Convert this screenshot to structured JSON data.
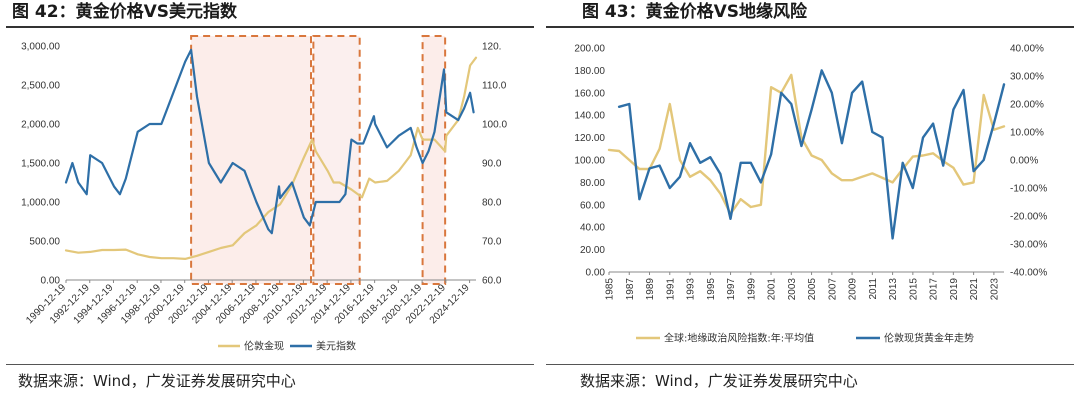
{
  "left": {
    "title": "图 42：黄金价格VS美元指数",
    "source": "数据来源：Wind，广发证券发展研究中心",
    "colors": {
      "gold": "#E3C77A",
      "usd": "#2E6FA7",
      "highlight_border": "#D9773D",
      "highlight_fill": "#FCEDEA"
    },
    "chart_data": {
      "type": "line",
      "x_ticks": [
        "1990-12-19",
        "1992-12-19",
        "1994-12-19",
        "1996-12-19",
        "1998-12-19",
        "2000-12-19",
        "2002-12-19",
        "2004-12-19",
        "2006-12-19",
        "2008-12-19",
        "2010-12-19",
        "2012-12-19",
        "2014-12-19",
        "2016-12-19",
        "2018-12-19",
        "2020-12-19",
        "2022-12-19",
        "2024-12-19"
      ],
      "y_left_ticks": [
        "0.00",
        "500.00",
        "1,000.00",
        "1,500.00",
        "2,000.00",
        "2,500.00",
        "3,000.00"
      ],
      "y_right_ticks": [
        "60.0",
        "70.0",
        "80.0",
        "90.0",
        "100.0",
        "110.0",
        "120."
      ],
      "ylim_left": [
        0,
        3000
      ],
      "ylim_right": [
        60,
        120
      ],
      "xlim": [
        1990.96,
        2025.5
      ],
      "highlighted_periods": [
        [
          2001.5,
          2011.6
        ],
        [
          2011.8,
          2015.7
        ],
        [
          2021.0,
          2022.9
        ]
      ],
      "series": [
        {
          "name": "伦敦金现",
          "axis": "left",
          "x": [
            1990.96,
            1992,
            1993,
            1994,
            1995,
            1996,
            1997,
            1998,
            1999,
            2000,
            2001,
            2002,
            2003,
            2004,
            2005,
            2006,
            2007,
            2008,
            2009,
            2010,
            2011,
            2011.7,
            2012,
            2013,
            2013.5,
            2014,
            2015,
            2015.9,
            2016.5,
            2017,
            2018,
            2019,
            2019.5,
            2020,
            2020.6,
            2021,
            2022,
            2022.9,
            2023,
            2024,
            2024.5,
            2025,
            2025.5
          ],
          "values": [
            380,
            350,
            360,
            385,
            385,
            390,
            330,
            295,
            280,
            280,
            270,
            310,
            360,
            410,
            445,
            600,
            700,
            870,
            970,
            1220,
            1570,
            1800,
            1650,
            1400,
            1250,
            1250,
            1160,
            1060,
            1300,
            1250,
            1270,
            1400,
            1500,
            1600,
            1950,
            1800,
            1800,
            1650,
            1850,
            2050,
            2350,
            2750,
            2850
          ]
        },
        {
          "name": "美元指数",
          "axis": "right",
          "x": [
            1990.96,
            1991.5,
            1992,
            1992.7,
            1993,
            1994,
            1995,
            1995.5,
            1996,
            1997,
            1998,
            1999,
            2000,
            2001,
            2001.5,
            2002,
            2003,
            2004,
            2005,
            2006,
            2007,
            2008,
            2008.3,
            2008.9,
            2009,
            2010,
            2011,
            2011.5,
            2012,
            2013,
            2014,
            2014.5,
            2015,
            2015.5,
            2016,
            2016.9,
            2017,
            2018,
            2019,
            2020,
            2020.5,
            2021,
            2021.5,
            2022,
            2022.8,
            2023,
            2024,
            2024.5,
            2025,
            2025.3
          ],
          "values": [
            85,
            90,
            85,
            82,
            92,
            90,
            84,
            82,
            86,
            98,
            100,
            100,
            108,
            116,
            119,
            107,
            90,
            85,
            90,
            88,
            80,
            73,
            72,
            84,
            81,
            85,
            76,
            74,
            80,
            80,
            80,
            82,
            96,
            95,
            95,
            102,
            100,
            94,
            97,
            99,
            94,
            90,
            93,
            98,
            114,
            103,
            101,
            104,
            108,
            103
          ]
        }
      ]
    },
    "legend": [
      {
        "label": "伦敦金现",
        "color": "#E3C77A"
      },
      {
        "label": "美元指数",
        "color": "#2E6FA7"
      }
    ]
  },
  "right": {
    "title": "图 43：黄金价格VS地缘风险",
    "source": "数据来源：Wind，广发证券发展研究中心",
    "colors": {
      "gpr": "#E3C77A",
      "gold_yoy": "#2E6FA7"
    },
    "chart_data": {
      "type": "line",
      "x_ticks": [
        "1985",
        "1987",
        "1989",
        "1991",
        "1993",
        "1995",
        "1997",
        "1999",
        "2001",
        "2003",
        "2005",
        "2007",
        "2009",
        "2011",
        "2013",
        "2015",
        "2017",
        "2019",
        "2021",
        "2023"
      ],
      "y_left_ticks": [
        "0.00",
        "20.00",
        "40.00",
        "60.00",
        "80.00",
        "100.00",
        "120.00",
        "140.00",
        "160.00",
        "180.00",
        "200.00"
      ],
      "y_right_ticks": [
        "-40.00%",
        "-30.00%",
        "-20.00%",
        "-10.00%",
        "0.00%",
        "10.00%",
        "20.00%",
        "30.00%",
        "40.00%"
      ],
      "ylim_left": [
        0,
        200
      ],
      "ylim_right": [
        -40,
        40
      ],
      "xlim": [
        1985,
        2024
      ],
      "series": [
        {
          "name": "全球:地缘政治风险指数:年:平均值",
          "axis": "left",
          "x": [
            1985,
            1986,
            1987,
            1988,
            1989,
            1990,
            1991,
            1992,
            1993,
            1994,
            1995,
            1996,
            1997,
            1998,
            1999,
            2000,
            2001,
            2002,
            2003,
            2004,
            2005,
            2006,
            2007,
            2008,
            2009,
            2010,
            2011,
            2012,
            2013,
            2014,
            2015,
            2016,
            2017,
            2018,
            2019,
            2020,
            2021,
            2022,
            2023,
            2024
          ],
          "values": [
            109,
            108,
            100,
            92,
            92,
            110,
            150,
            100,
            85,
            90,
            82,
            70,
            52,
            65,
            58,
            60,
            165,
            160,
            176,
            120,
            104,
            100,
            88,
            82,
            82,
            85,
            88,
            84,
            80,
            92,
            103,
            104,
            106,
            99,
            93,
            78,
            80,
            158,
            127,
            130
          ]
        },
        {
          "name": "伦敦现货黄金年走势",
          "axis": "right",
          "x": [
            1985,
            1986,
            1987,
            1988,
            1989,
            1990,
            1991,
            1992,
            1993,
            1994,
            1995,
            1996,
            1997,
            1998,
            1999,
            2000,
            2001,
            2002,
            2003,
            2004,
            2005,
            2006,
            2007,
            2008,
            2009,
            2010,
            2011,
            2012,
            2013,
            2014,
            2015,
            2016,
            2017,
            2018,
            2019,
            2020,
            2021,
            2022,
            2023,
            2024
          ],
          "values": [
            null,
            19,
            20,
            -14,
            -3,
            -2,
            -10,
            -6,
            6,
            -1,
            1,
            -5,
            -21,
            -1,
            -1,
            -8,
            2,
            24,
            20,
            5,
            18,
            32,
            24,
            6,
            24,
            28,
            10,
            8,
            -28,
            -1,
            -10,
            8,
            13,
            -2,
            18,
            25,
            -4,
            0,
            13,
            27
          ]
        }
      ]
    },
    "legend": [
      {
        "label": "全球:地缘政治风险指数:年:平均值",
        "color": "#E3C77A"
      },
      {
        "label": "伦敦现货黄金年走势",
        "color": "#2E6FA7"
      }
    ]
  }
}
